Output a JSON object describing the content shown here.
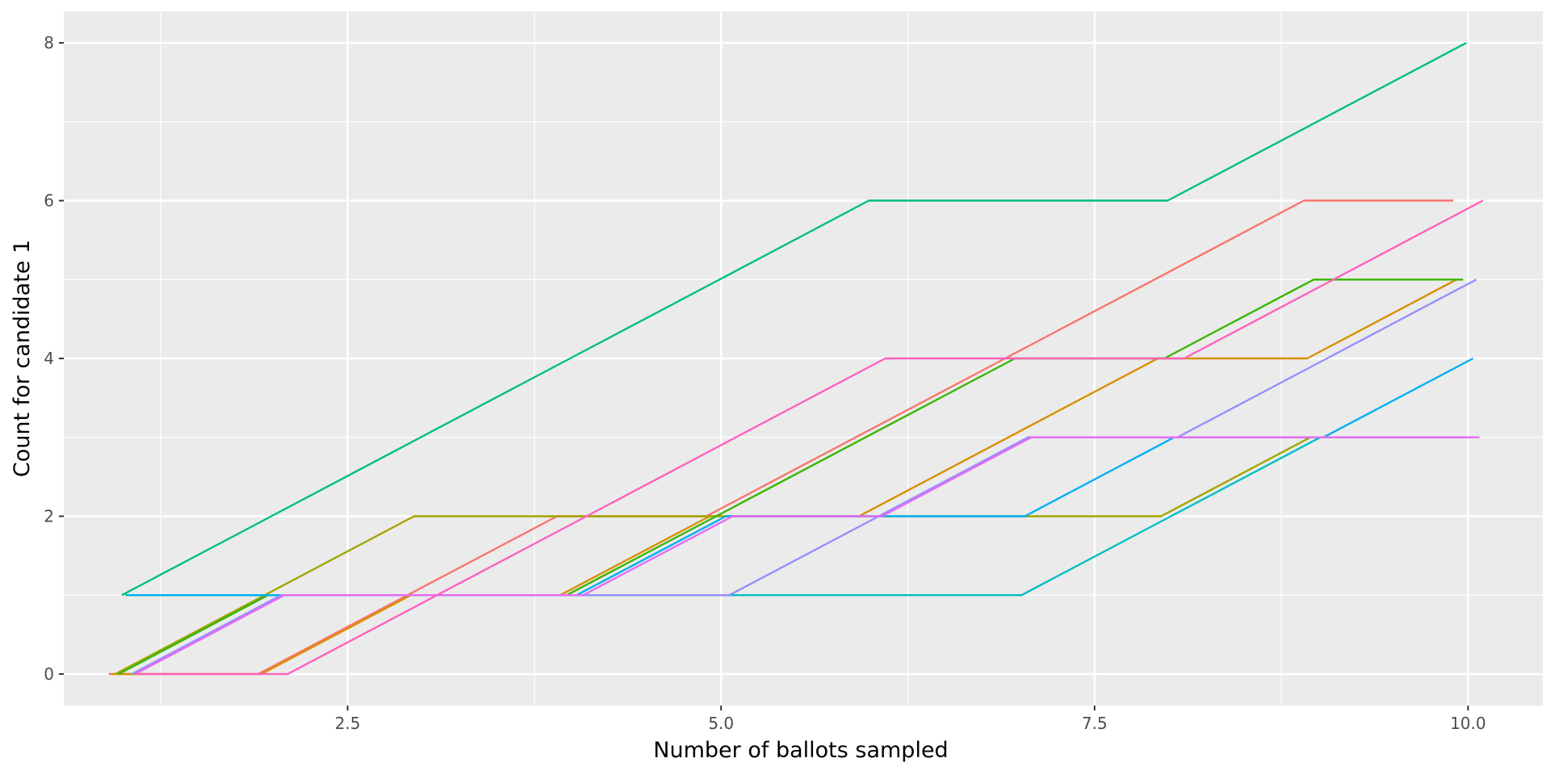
{
  "chart_data": {
    "type": "line",
    "title": "",
    "xlabel": "Number of ballots sampled",
    "ylabel": "Count for candidate 1",
    "xlim": [
      0.6,
      10.5
    ],
    "ylim": [
      -0.4,
      8.4
    ],
    "x_ticks": [
      2.5,
      5.0,
      7.5,
      10.0
    ],
    "x_tick_labels": [
      "2.5",
      "5.0",
      "7.5",
      "10.0"
    ],
    "y_ticks": [
      0,
      2,
      4,
      6,
      8
    ],
    "y_tick_labels": [
      "0",
      "2",
      "4",
      "6",
      "8"
    ],
    "grid": true,
    "legend": "none",
    "series": [
      {
        "color": "#F8766D",
        "x": [
          1,
          2,
          3,
          4,
          5,
          6,
          7,
          8,
          9,
          10
        ],
        "y": [
          0,
          0,
          1,
          2,
          2,
          3,
          4,
          5,
          6,
          6
        ]
      },
      {
        "color": "#D89000",
        "x": [
          1,
          2,
          3,
          4,
          5,
          6,
          7,
          8,
          9,
          10
        ],
        "y": [
          0,
          0,
          1,
          1,
          2,
          2,
          3,
          4,
          4,
          5
        ]
      },
      {
        "color": "#A3A500",
        "x": [
          1,
          2,
          3,
          4,
          5,
          6,
          7,
          8,
          9,
          10
        ],
        "y": [
          0,
          1,
          2,
          2,
          2,
          2,
          2,
          2,
          3,
          3
        ]
      },
      {
        "color": "#39B600",
        "x": [
          1,
          2,
          3,
          4,
          5,
          6,
          7,
          8,
          9,
          10
        ],
        "y": [
          0,
          1,
          1,
          1,
          2,
          3,
          4,
          4,
          5,
          5
        ]
      },
      {
        "color": "#00BF7D",
        "x": [
          1,
          2,
          3,
          4,
          5,
          6,
          7,
          8,
          9,
          10
        ],
        "y": [
          1,
          2,
          3,
          4,
          5,
          6,
          6,
          6,
          7,
          8
        ]
      },
      {
        "color": "#00BFC4",
        "x": [
          1,
          2,
          3,
          4,
          5,
          6,
          7,
          8,
          9,
          10
        ],
        "y": [
          1,
          1,
          1,
          1,
          1,
          1,
          1,
          2,
          3,
          3
        ]
      },
      {
        "color": "#00B0F6",
        "x": [
          1,
          2,
          3,
          4,
          5,
          6,
          7,
          8,
          9,
          10
        ],
        "y": [
          1,
          1,
          1,
          1,
          2,
          2,
          2,
          3,
          3,
          4
        ]
      },
      {
        "color": "#9590FF",
        "x": [
          1,
          2,
          3,
          4,
          5,
          6,
          7,
          8,
          9,
          10
        ],
        "y": [
          0,
          1,
          1,
          1,
          1,
          2,
          3,
          3,
          4,
          5
        ]
      },
      {
        "color": "#E76BF3",
        "x": [
          1,
          2,
          3,
          4,
          5,
          6,
          7,
          8,
          9,
          10
        ],
        "y": [
          0,
          1,
          1,
          1,
          2,
          2,
          3,
          3,
          3,
          3
        ]
      },
      {
        "color": "#FF62BC",
        "x": [
          1,
          2,
          3,
          4,
          5,
          6,
          7,
          8,
          9,
          10
        ],
        "y": [
          0,
          0,
          1,
          2,
          3,
          4,
          4,
          4,
          5,
          6
        ]
      }
    ]
  }
}
